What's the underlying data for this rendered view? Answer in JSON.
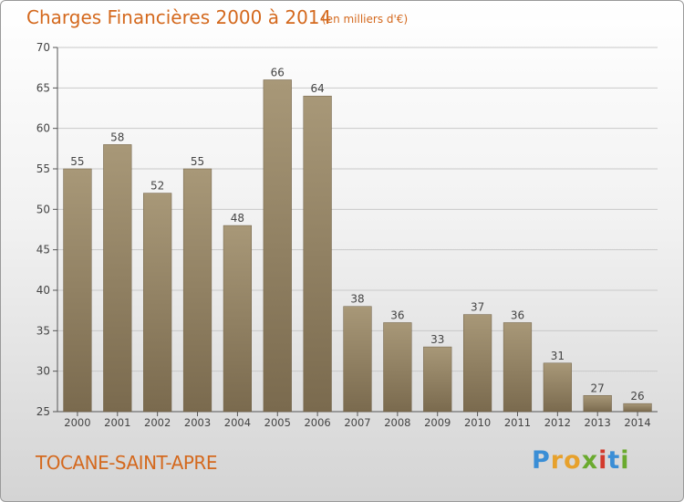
{
  "header": {
    "title": "Charges Financières 2000 à 2014",
    "unit": "(en milliers d'€)"
  },
  "footer": {
    "town": "TOCANE-SAINT-APRE",
    "brand": {
      "letters": [
        "P",
        "r",
        "o",
        "x",
        "i",
        "t",
        "i"
      ],
      "colors": [
        "#3a8ed6",
        "#e7a12c",
        "#e7a12c",
        "#6aaa2e",
        "#d33a2c",
        "#3a8ed6",
        "#6aaa2e"
      ]
    }
  },
  "chart_data": {
    "type": "bar",
    "categories": [
      "2000",
      "2001",
      "2002",
      "2003",
      "2004",
      "2005",
      "2006",
      "2007",
      "2008",
      "2009",
      "2010",
      "2011",
      "2012",
      "2013",
      "2014"
    ],
    "values": [
      55,
      58,
      52,
      55,
      48,
      66,
      64,
      38,
      36,
      33,
      37,
      36,
      31,
      27,
      26
    ],
    "title": "Charges Financières 2000 à 2014",
    "subtitle": "(en milliers d'€)",
    "ylim": [
      25,
      70
    ],
    "yticks": [
      25,
      30,
      35,
      40,
      45,
      50,
      55,
      60,
      65,
      70
    ],
    "grid": true,
    "legend": "none",
    "colors": {
      "bar_top": "#a89878",
      "bar_bottom": "#7a6a4e",
      "grid": "#c9c9c9"
    }
  }
}
